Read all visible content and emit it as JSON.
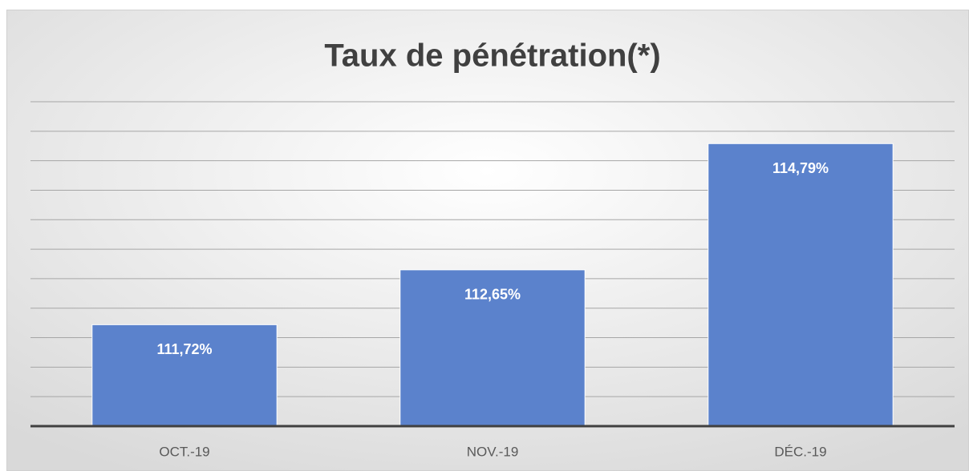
{
  "chart_data": {
    "type": "bar",
    "title": "Taux de pénétration(*)",
    "categories": [
      "OCT.-19",
      "NOV.-19",
      "DÉC.-19"
    ],
    "values": [
      111.72,
      112.65,
      114.79
    ],
    "value_labels": [
      "111,72%",
      "112,65%",
      "114,79%"
    ],
    "color": "#5b82cc",
    "ylim": [
      110,
      115.5
    ],
    "yticks": [
      110,
      110.5,
      111,
      111.5,
      112,
      112.5,
      113,
      113.5,
      114,
      114.5,
      115,
      115.5
    ],
    "grid": true
  }
}
